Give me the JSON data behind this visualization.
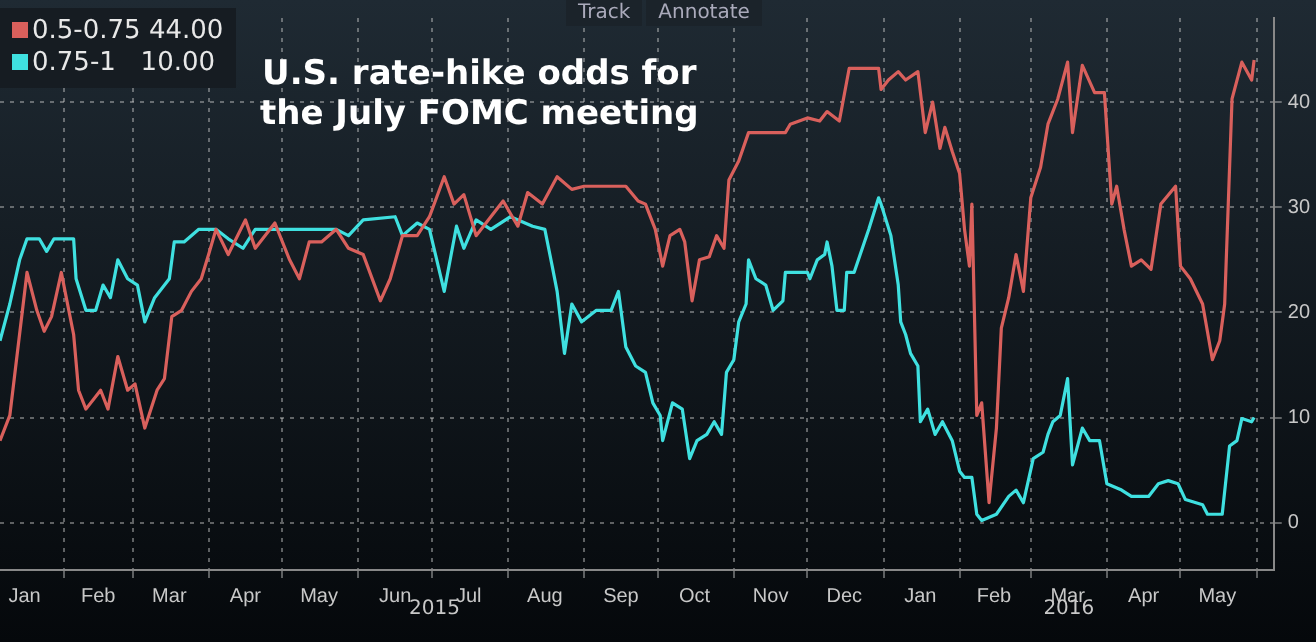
{
  "chart_data": {
    "type": "line",
    "title": "U.S. rate-hike odds for\nthe July FOMC meeting",
    "legend": "top left",
    "grid": true,
    "tick_labels": "xy",
    "marker": "none",
    "line_style": "solid",
    "xlim": [
      "2015-01-06",
      "2016-06-08"
    ],
    "ylim": [
      -4.5,
      48
    ],
    "yticks": [
      0,
      10,
      20,
      30,
      40
    ],
    "xticks": [
      {
        "value": "2015-01-16",
        "label": "Jan"
      },
      {
        "value": "2015-02-01",
        "label": null
      },
      {
        "value": "2015-02-15",
        "label": "Feb"
      },
      {
        "value": "2015-03-01",
        "label": null
      },
      {
        "value": "2015-03-16",
        "label": "Mar"
      },
      {
        "value": "2015-04-01",
        "label": null
      },
      {
        "value": "2015-04-16",
        "label": "Apr"
      },
      {
        "value": "2015-05-01",
        "label": null
      },
      {
        "value": "2015-05-16",
        "label": "May"
      },
      {
        "value": "2015-06-01",
        "label": null
      },
      {
        "value": "2015-06-16",
        "label": "Jun"
      },
      {
        "value": "2015-07-01",
        "label": null
      },
      {
        "value": "2015-07-16",
        "label": "Jul"
      },
      {
        "value": "2015-08-01",
        "label": null
      },
      {
        "value": "2015-08-16",
        "label": "Aug"
      },
      {
        "value": "2015-09-01",
        "label": null
      },
      {
        "value": "2015-09-16",
        "label": "Sep"
      },
      {
        "value": "2015-10-01",
        "label": null
      },
      {
        "value": "2015-10-16",
        "label": "Oct"
      },
      {
        "value": "2015-11-01",
        "label": null
      },
      {
        "value": "2015-11-16",
        "label": "Nov"
      },
      {
        "value": "2015-12-01",
        "label": null
      },
      {
        "value": "2015-12-16",
        "label": "Dec"
      },
      {
        "value": "2016-01-01",
        "label": null
      },
      {
        "value": "2016-01-16",
        "label": "Jan"
      },
      {
        "value": "2016-02-01",
        "label": null
      },
      {
        "value": "2016-02-15",
        "label": "Feb"
      },
      {
        "value": "2016-03-01",
        "label": null
      },
      {
        "value": "2016-03-16",
        "label": "Mar"
      },
      {
        "value": "2016-04-01",
        "label": null
      },
      {
        "value": "2016-04-16",
        "label": "Apr"
      },
      {
        "value": "2016-05-01",
        "label": null
      },
      {
        "value": "2016-05-16",
        "label": "May"
      },
      {
        "value": "2016-06-01",
        "label": null
      }
    ],
    "annotations": [
      "2015",
      "2016",
      "Track",
      "Annotate"
    ],
    "series": [
      {
        "name": "0.5-0.75 44.00",
        "color": "#d9605c",
        "x": [
          "2015-01-06",
          "2015-01-10",
          "2015-01-17",
          "2015-01-21",
          "2015-01-24",
          "2015-01-27",
          "2015-01-31",
          "2015-02-02",
          "2015-02-05",
          "2015-02-07",
          "2015-02-10",
          "2015-02-16",
          "2015-02-19",
          "2015-02-23",
          "2015-02-27",
          "2015-03-02",
          "2015-03-06",
          "2015-03-11",
          "2015-03-14",
          "2015-03-17",
          "2015-03-21",
          "2015-03-25",
          "2015-03-29",
          "2015-04-01",
          "2015-04-04",
          "2015-04-09",
          "2015-04-16",
          "2015-04-20",
          "2015-04-28",
          "2015-05-04",
          "2015-05-08",
          "2015-05-12",
          "2015-05-17",
          "2015-05-23",
          "2015-05-28",
          "2015-06-03",
          "2015-06-10",
          "2015-06-14",
          "2015-06-19",
          "2015-06-25",
          "2015-06-30",
          "2015-07-06",
          "2015-07-10",
          "2015-07-14",
          "2015-07-19",
          "2015-07-25",
          "2015-07-30",
          "2015-08-05",
          "2015-08-09",
          "2015-08-15",
          "2015-08-21",
          "2015-08-27",
          "2015-09-01",
          "2015-09-10",
          "2015-09-18",
          "2015-09-23",
          "2015-09-26",
          "2015-09-30",
          "2015-10-03",
          "2015-10-06",
          "2015-10-10",
          "2015-10-12",
          "2015-10-15",
          "2015-10-18",
          "2015-10-22",
          "2015-10-25",
          "2015-10-28",
          "2015-10-30",
          "2015-11-03",
          "2015-11-07",
          "2015-11-14",
          "2015-11-22",
          "2015-11-24",
          "2015-12-01",
          "2015-12-06",
          "2015-12-09",
          "2015-12-14",
          "2015-12-18",
          "2015-12-30",
          "2015-12-31",
          "2016-01-03",
          "2016-01-07",
          "2016-01-10",
          "2016-01-15",
          "2016-01-18",
          "2016-01-21",
          "2016-01-24",
          "2016-01-26",
          "2016-01-29",
          "2016-02-01",
          "2016-02-03",
          "2016-02-05",
          "2016-02-06",
          "2016-02-08",
          "2016-02-10",
          "2016-02-13",
          "2016-02-16",
          "2016-02-18",
          "2016-02-21",
          "2016-02-24",
          "2016-02-27",
          "2016-03-01",
          "2016-03-05",
          "2016-03-08",
          "2016-03-12",
          "2016-03-16",
          "2016-03-18",
          "2016-03-22",
          "2016-03-27",
          "2016-03-31",
          "2016-04-03",
          "2016-04-05",
          "2016-04-08",
          "2016-04-11",
          "2016-04-15",
          "2016-04-19",
          "2016-04-23",
          "2016-04-29",
          "2016-05-01",
          "2016-05-05",
          "2016-05-10",
          "2016-05-14",
          "2016-05-17",
          "2016-05-19",
          "2016-05-22",
          "2016-05-26",
          "2016-05-30",
          "2016-05-31"
        ],
        "values": [
          7.8,
          10.2,
          23.8,
          20.2,
          18.2,
          19.6,
          23.8,
          21.4,
          17.9,
          12.6,
          10.8,
          12.6,
          10.8,
          15.8,
          12.6,
          13.2,
          9,
          12.6,
          13.7,
          19.6,
          20.2,
          22,
          23.2,
          25.5,
          27.9,
          25.5,
          28.8,
          26.1,
          28.5,
          25,
          23.2,
          26.7,
          26.7,
          27.9,
          26.1,
          25.5,
          21.1,
          23.2,
          27.3,
          27.3,
          29.1,
          32.9,
          30.3,
          31.2,
          27.3,
          29.1,
          30.6,
          28.2,
          31.4,
          30.3,
          32.9,
          31.7,
          32,
          32,
          32,
          30.6,
          30.3,
          27.9,
          24.4,
          27.3,
          27.9,
          26.7,
          21.1,
          25,
          25.3,
          27.3,
          26.1,
          32.6,
          34.4,
          37.1,
          37.1,
          37.1,
          37.9,
          38.5,
          38.2,
          39.1,
          38.2,
          43.2,
          43.2,
          41.2,
          42.1,
          42.9,
          42.1,
          42.9,
          37.1,
          40,
          35.6,
          37.6,
          35.3,
          33.2,
          27.9,
          24.4,
          30.3,
          10.2,
          11.4,
          1.9,
          9,
          18.5,
          21.4,
          25.5,
          22,
          30.9,
          33.8,
          37.9,
          40.3,
          43.8,
          37.1,
          43.5,
          40.9,
          40.9,
          30.3,
          32,
          27.9,
          24.4,
          25,
          24.1,
          30.3,
          32,
          24.4,
          23.2,
          20.8,
          15.5,
          17.3,
          20.8,
          40.3,
          43.8,
          42.1,
          44
        ]
      },
      {
        "name": "0.75-1   10.00",
        "color": "#3fe0e0",
        "x": [
          "2015-01-06",
          "2015-01-10",
          "2015-01-14",
          "2015-01-17",
          "2015-01-22",
          "2015-01-25",
          "2015-01-28",
          "2015-02-05",
          "2015-02-06",
          "2015-02-10",
          "2015-02-14",
          "2015-02-17",
          "2015-02-20",
          "2015-02-23",
          "2015-02-27",
          "2015-03-03",
          "2015-03-06",
          "2015-03-10",
          "2015-03-16",
          "2015-03-18",
          "2015-03-22",
          "2015-03-28",
          "2015-04-04",
          "2015-04-09",
          "2015-04-15",
          "2015-04-20",
          "2015-05-01",
          "2015-05-12",
          "2015-05-23",
          "2015-05-28",
          "2015-06-03",
          "2015-06-16",
          "2015-06-19",
          "2015-06-25",
          "2015-06-30",
          "2015-07-06",
          "2015-07-11",
          "2015-07-14",
          "2015-07-19",
          "2015-07-25",
          "2015-08-02",
          "2015-08-11",
          "2015-08-16",
          "2015-08-19",
          "2015-08-21",
          "2015-08-24",
          "2015-08-27",
          "2015-08-31",
          "2015-09-06",
          "2015-09-12",
          "2015-09-15",
          "2015-09-18",
          "2015-09-22",
          "2015-09-26",
          "2015-09-29",
          "2015-10-02",
          "2015-10-03",
          "2015-10-07",
          "2015-10-11",
          "2015-10-14",
          "2015-10-17",
          "2015-10-21",
          "2015-10-24",
          "2015-10-27",
          "2015-10-29",
          "2015-11-01",
          "2015-11-03",
          "2015-11-06",
          "2015-11-07",
          "2015-11-10",
          "2015-11-14",
          "2015-11-17",
          "2015-11-21",
          "2015-11-22",
          "2015-12-01",
          "2015-12-02",
          "2015-12-05",
          "2015-12-08",
          "2015-12-09",
          "2015-12-11",
          "2015-12-13",
          "2015-12-16",
          "2015-12-17",
          "2015-12-20",
          "2015-12-26",
          "2015-12-30",
          "2015-12-31",
          "2016-01-04",
          "2016-01-07",
          "2016-01-08",
          "2016-01-10",
          "2016-01-12",
          "2016-01-15",
          "2016-01-16",
          "2016-01-19",
          "2016-01-22",
          "2016-01-25",
          "2016-01-29",
          "2016-02-01",
          "2016-02-03",
          "2016-02-06",
          "2016-02-08",
          "2016-02-10",
          "2016-02-16",
          "2016-02-21",
          "2016-02-24",
          "2016-02-27",
          "2016-03-02",
          "2016-03-06",
          "2016-03-08",
          "2016-03-10",
          "2016-03-13",
          "2016-03-16",
          "2016-03-18",
          "2016-03-22",
          "2016-03-25",
          "2016-03-29",
          "2016-04-01",
          "2016-04-07",
          "2016-04-11",
          "2016-04-18",
          "2016-04-22",
          "2016-04-26",
          "2016-04-30",
          "2016-05-03",
          "2016-05-10",
          "2016-05-12",
          "2016-05-18",
          "2016-05-21",
          "2016-05-24",
          "2016-05-26",
          "2016-05-30",
          "2016-05-31"
        ],
        "values": [
          17.3,
          20.8,
          25,
          27,
          27,
          25.8,
          27,
          27,
          23.2,
          20.2,
          20.2,
          22.6,
          21.4,
          25,
          23.2,
          22.6,
          19.1,
          21.4,
          23.2,
          26.7,
          26.7,
          27.9,
          27.9,
          27,
          26.1,
          27.9,
          27.9,
          27.9,
          27.9,
          27.3,
          28.8,
          29.1,
          27.3,
          28.5,
          27.9,
          22,
          28.2,
          26.1,
          28.8,
          27.9,
          29.1,
          28.2,
          27.9,
          24.4,
          22,
          16.1,
          20.8,
          19.1,
          20.2,
          20.2,
          22,
          16.7,
          14.9,
          14.3,
          11.4,
          10.2,
          7.8,
          11.4,
          10.8,
          6.1,
          7.8,
          8.4,
          9.6,
          8.4,
          14.3,
          15.5,
          19.1,
          20.8,
          25,
          23.2,
          22.6,
          20.2,
          21.1,
          23.8,
          23.8,
          23.2,
          25,
          25.5,
          26.7,
          24.4,
          20.2,
          20.2,
          23.8,
          23.8,
          27.9,
          30.9,
          30.3,
          27.3,
          22.6,
          19.1,
          17.9,
          16.1,
          14.9,
          9.6,
          10.8,
          8.4,
          9.6,
          7.8,
          4.9,
          4.3,
          4.3,
          0.8,
          0.2,
          0.8,
          2.5,
          3.1,
          1.9,
          6.1,
          6.7,
          8.4,
          9.6,
          10.2,
          13.7,
          5.5,
          9,
          7.8,
          7.8,
          3.7,
          3.1,
          2.5,
          2.5,
          3.7,
          4,
          3.7,
          2.2,
          1.7,
          0.8,
          0.8,
          7.3,
          7.8,
          9.9,
          9.6,
          10
        ]
      }
    ]
  }
}
